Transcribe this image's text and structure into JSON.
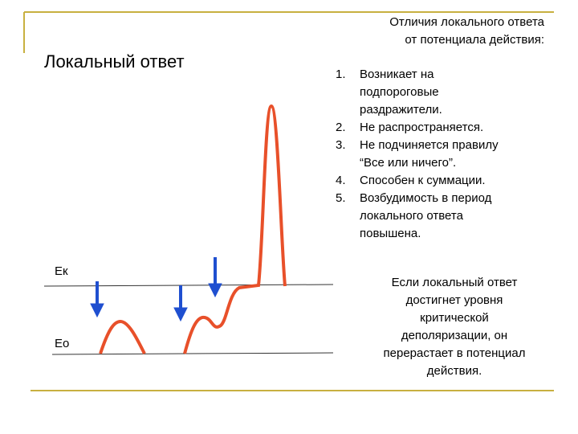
{
  "header": {
    "title_lines": [
      "Отличия локального ответа",
      "от потенциала действия:"
    ]
  },
  "heading": "Локальный ответ",
  "list": [
    {
      "number": "1.",
      "lines": [
        "Возникает на",
        "подпороговые",
        "раздражители."
      ]
    },
    {
      "number": "2.",
      "lines": [
        "Не распространяется."
      ]
    },
    {
      "number": "3.",
      "lines": [
        "Не подчиняется правилу",
        "“Все или ничего”."
      ]
    },
    {
      "number": "4.",
      "lines": [
        "Способен к суммации."
      ]
    },
    {
      "number": "5.",
      "lines": [
        "Возбудимость в период",
        "локального ответа",
        "повышена."
      ]
    }
  ],
  "note_lines": [
    "Если локальный ответ",
    "достигнет уровня",
    "критической",
    "деполяризации, он",
    "перерастает в потенциал",
    "действия."
  ],
  "diagram": {
    "labels": [
      "Ек",
      "Ео"
    ]
  }
}
